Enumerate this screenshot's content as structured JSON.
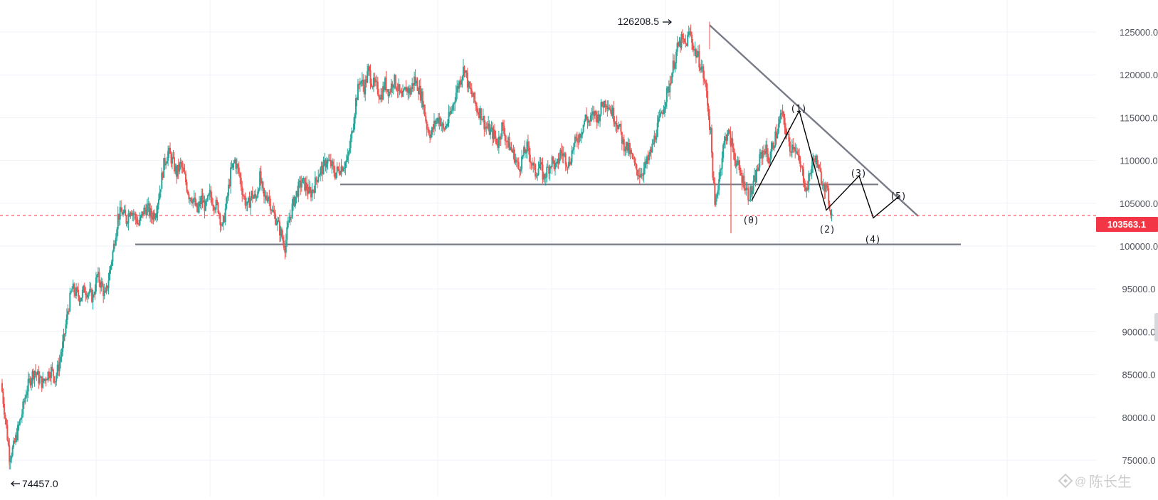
{
  "chart_data": {
    "type": "candlestick",
    "price_range": [
      73000,
      127000
    ],
    "y_ticks": [
      125000.0,
      120000.0,
      115000.0,
      110000.0,
      105000.0,
      100000.0,
      95000.0,
      90000.0,
      85000.0,
      80000.0,
      75000.0
    ],
    "y_tick_labels": [
      "125000.0",
      "120000.0",
      "115000.0",
      "110000.0",
      "105000.0",
      "100000.0",
      "95000.0",
      "90000.0",
      "85000.0",
      "80000.0",
      "75000.0"
    ],
    "current_price": 103563.1,
    "current_price_label": "103563.1",
    "high": {
      "value": 126208.5,
      "label": "126208.5"
    },
    "low": {
      "value": 74457.0,
      "label": "74457.0"
    },
    "grid": true,
    "colors": {
      "up": "#26a69a",
      "down": "#ef5350",
      "line": "#787b86",
      "wave": "#000000",
      "price_tag": "#f23645"
    },
    "close_series": [
      84000,
      80000,
      75500,
      76500,
      78500,
      80500,
      83000,
      84500,
      85500,
      84500,
      84000,
      85000,
      85500,
      84500,
      86500,
      89000,
      92500,
      95000,
      94500,
      94000,
      95000,
      94500,
      94000,
      96500,
      95500,
      94000,
      97000,
      100000,
      103500,
      104000,
      103000,
      104500,
      103500,
      102500,
      104000,
      104500,
      103500,
      104000,
      106500,
      109500,
      111000,
      110000,
      108500,
      109500,
      108000,
      106000,
      105500,
      104000,
      105500,
      104500,
      106000,
      105000,
      104500,
      102000,
      105000,
      108500,
      110000,
      108500,
      106000,
      104500,
      106000,
      105500,
      108000,
      105500,
      106000,
      104000,
      103000,
      101500,
      100000,
      103000,
      105000,
      106500,
      107500,
      107000,
      106000,
      107000,
      108500,
      109000,
      110000,
      109500,
      108500,
      109000,
      109500,
      110000,
      113000,
      117000,
      119500,
      118500,
      120500,
      119000,
      118500,
      117500,
      119000,
      118000,
      119500,
      118500,
      117000,
      118500,
      118000,
      119500,
      118500,
      117000,
      114000,
      113000,
      114500,
      115000,
      113500,
      114500,
      116000,
      118000,
      119500,
      121000,
      118500,
      117500,
      116000,
      115500,
      114000,
      113500,
      113000,
      112000,
      114000,
      112500,
      111500,
      110500,
      109000,
      110500,
      111500,
      110000,
      108500,
      109500,
      108000,
      109000,
      110000,
      109000,
      111000,
      110500,
      109500,
      111500,
      112500,
      113500,
      115000,
      114500,
      115500,
      115000,
      116500,
      117000,
      116000,
      115000,
      114000,
      112000,
      111500,
      110500,
      109000,
      108500,
      109000,
      110000,
      111500,
      113500,
      115000,
      117000,
      118500,
      121000,
      123000,
      124000,
      123500,
      125000,
      123000,
      122000,
      120500,
      118000,
      113000,
      104500,
      108000,
      111500,
      113500,
      112000,
      110000,
      108500,
      107500,
      106000,
      106500,
      108500,
      110500,
      111500,
      110000,
      112000,
      113500,
      115500,
      113500,
      111500,
      112000,
      110000,
      108500,
      106500,
      109000,
      110500,
      108500,
      107500,
      106000,
      103563
    ]
  },
  "annotations": {
    "wave_labels": [
      "(0)",
      "(1)",
      "(2)",
      "(3)",
      "(4)",
      "(5)"
    ],
    "high_arrow_label": "126208.5",
    "low_arrow_label": "74457.0",
    "watermark": "陈长生"
  },
  "icons": {
    "watermark_logo": "binance-logo-icon",
    "arrow_right": "arrow-right-icon",
    "arrow_left": "arrow-left-icon"
  }
}
